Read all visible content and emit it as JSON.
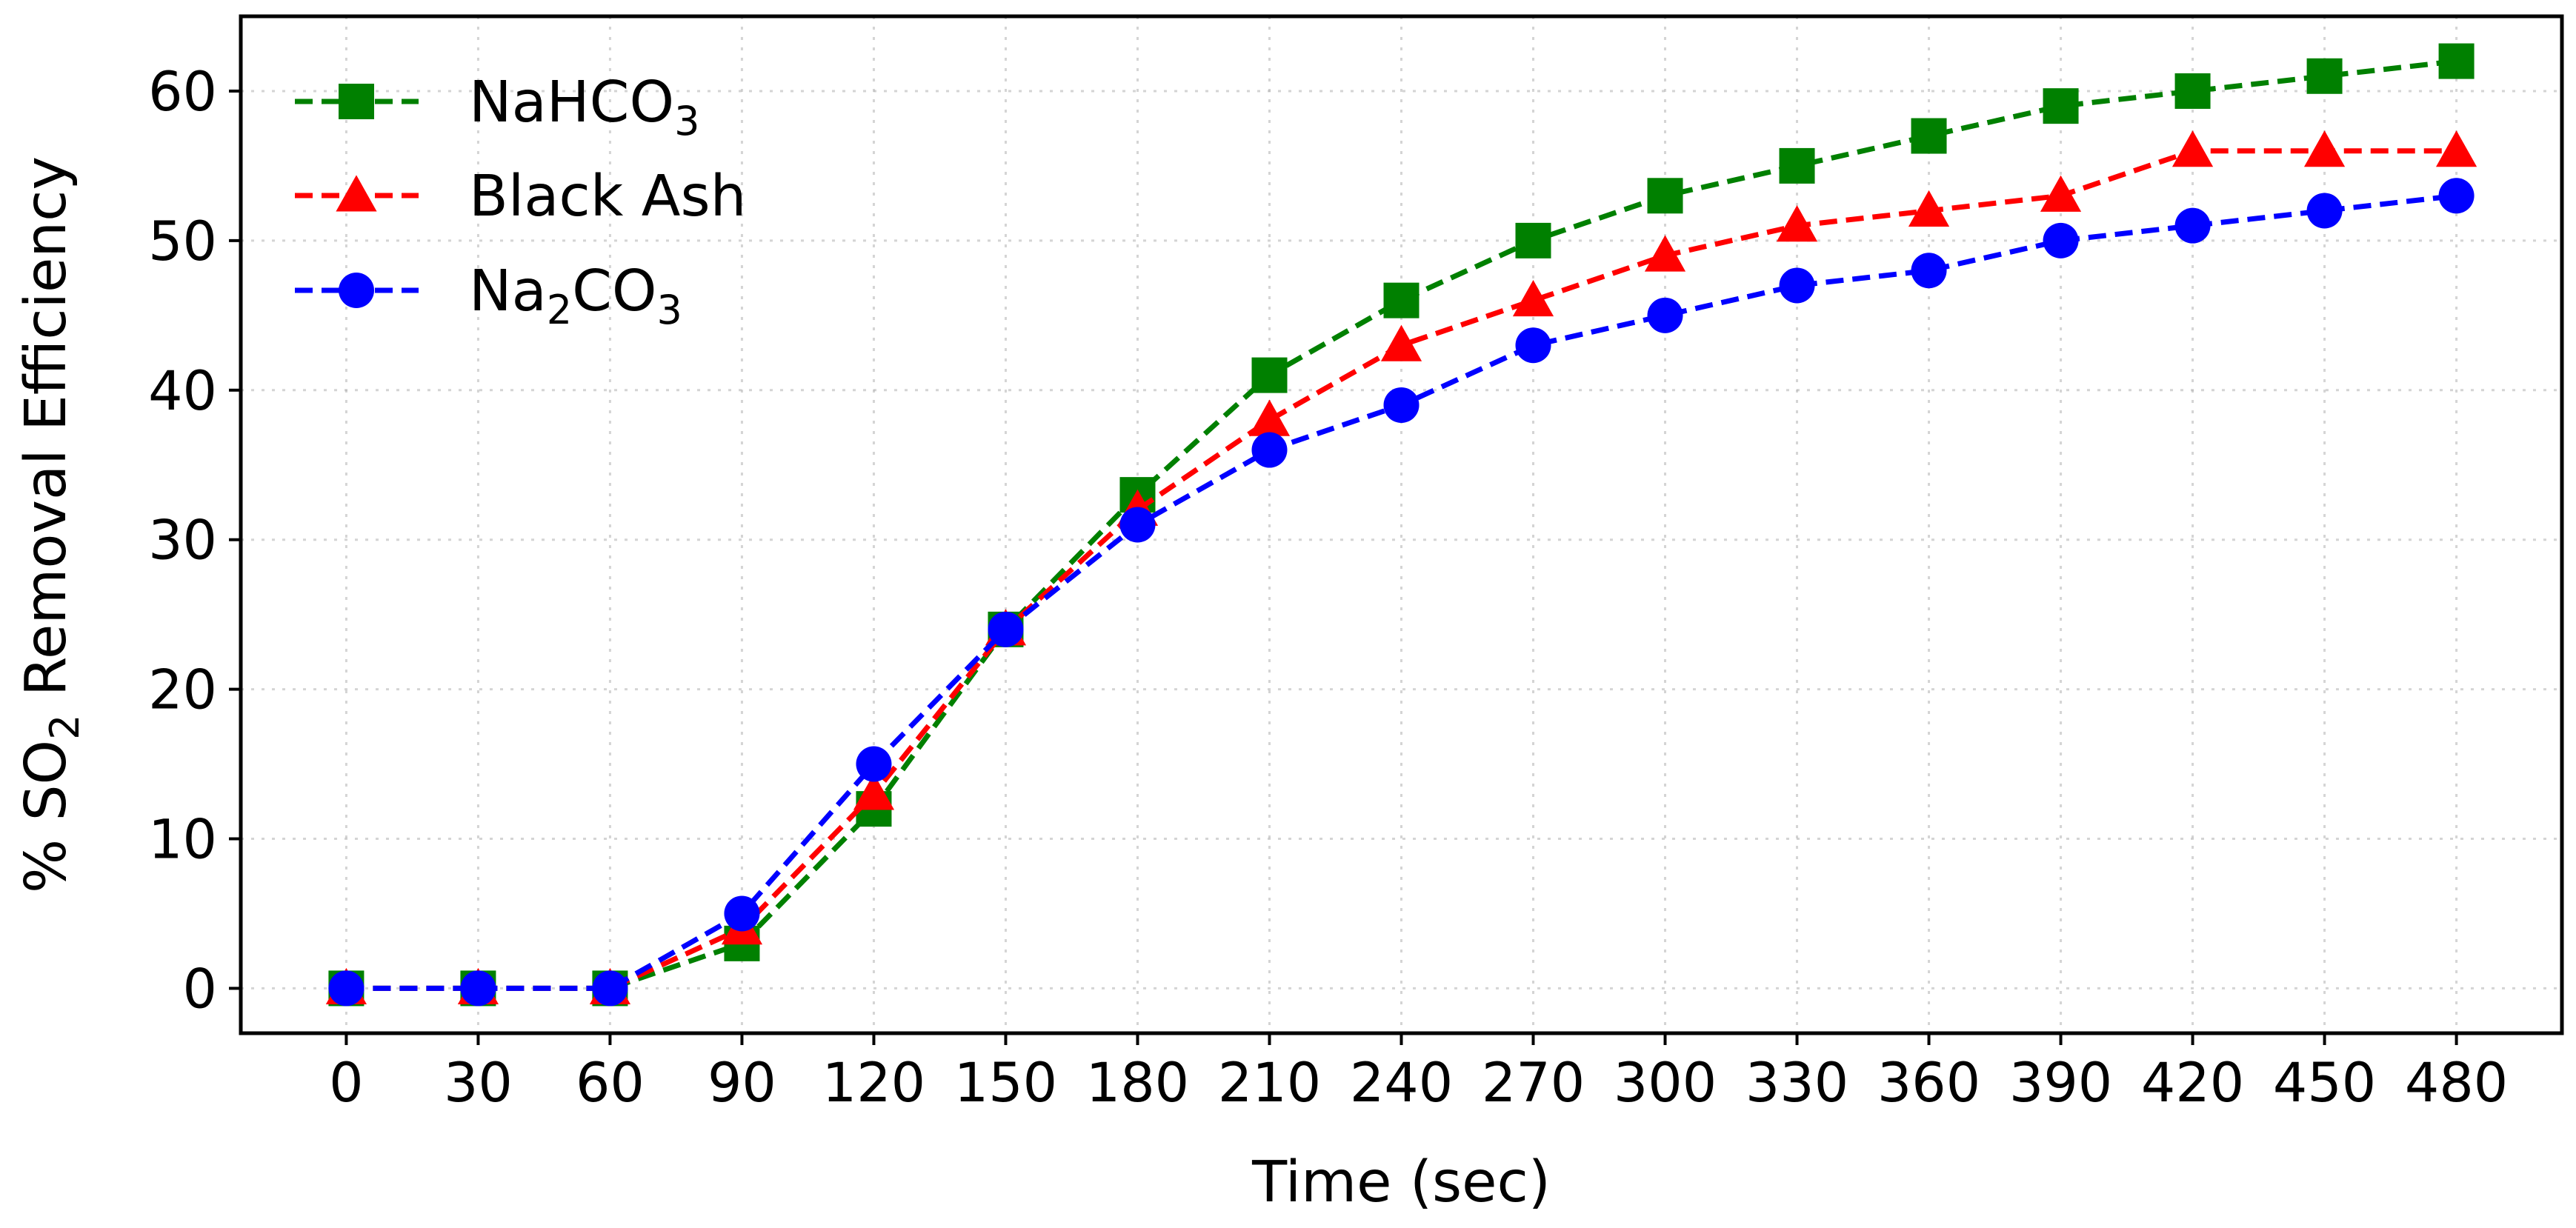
{
  "chart_data": {
    "type": "line",
    "xlabel": "Time (sec)",
    "ylabel": {
      "prefix": "% SO",
      "sub": "2",
      "suffix": " Removal Efficiency"
    },
    "xlim": [
      -24,
      504
    ],
    "ylim": [
      -3,
      65
    ],
    "x": [
      0,
      30,
      60,
      90,
      120,
      150,
      180,
      210,
      240,
      270,
      300,
      330,
      360,
      390,
      420,
      450,
      480
    ],
    "x_tick_labels": [
      "0",
      "30",
      "60",
      "90",
      "120",
      "150",
      "180",
      "210",
      "240",
      "270",
      "300",
      "330",
      "360",
      "390",
      "420",
      "450",
      "480"
    ],
    "y_ticks": [
      0,
      10,
      20,
      30,
      40,
      50,
      60
    ],
    "y_tick_labels": [
      "0",
      "10",
      "20",
      "30",
      "40",
      "50",
      "60"
    ],
    "grid": true,
    "legend_position": "top-left",
    "series": [
      {
        "name": "NaHCO3",
        "label_parts": [
          {
            "t": "NaHCO"
          },
          {
            "t": "3",
            "sub": true
          }
        ],
        "color": "#008000",
        "marker": "square",
        "values": [
          0,
          0,
          0,
          3,
          12,
          24,
          33,
          41,
          46,
          50,
          53,
          55,
          57,
          59,
          60,
          61,
          62
        ]
      },
      {
        "name": "Black Ash",
        "label_parts": [
          {
            "t": "Black Ash"
          }
        ],
        "color": "#ff0000",
        "marker": "triangle",
        "values": [
          0,
          0,
          0,
          4,
          13,
          24,
          32,
          38,
          43,
          46,
          49,
          51,
          52,
          53,
          56,
          56,
          56
        ]
      },
      {
        "name": "Na2CO3",
        "label_parts": [
          {
            "t": "Na"
          },
          {
            "t": "2",
            "sub": true
          },
          {
            "t": "CO"
          },
          {
            "t": "3",
            "sub": true
          }
        ],
        "color": "#0000ff",
        "marker": "circle",
        "values": [
          0,
          0,
          0,
          5,
          15,
          24,
          31,
          36,
          39,
          43,
          45,
          47,
          48,
          50,
          51,
          52,
          53
        ]
      }
    ]
  }
}
